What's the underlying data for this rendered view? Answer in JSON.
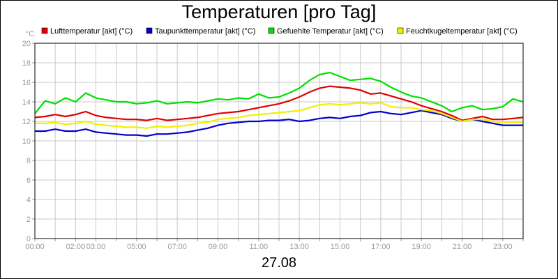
{
  "chart_data": {
    "type": "line",
    "title": "Temperaturen [pro Tag]",
    "ylabel": "°C",
    "xlabel": "27.08",
    "ylim": [
      0,
      20
    ],
    "yticks": [
      0,
      2,
      4,
      6,
      8,
      10,
      12,
      14,
      16,
      18,
      20
    ],
    "xlim": [
      0,
      24
    ],
    "xticks": [
      {
        "t": 0,
        "label": "00:00"
      },
      {
        "t": 2,
        "label": "02:00"
      },
      {
        "t": 3,
        "label": "03:00"
      },
      {
        "t": 5,
        "label": "05:00"
      },
      {
        "t": 7,
        "label": "07:00"
      },
      {
        "t": 9,
        "label": "09:00"
      },
      {
        "t": 11,
        "label": "11:00"
      },
      {
        "t": 13,
        "label": "13:00"
      },
      {
        "t": 15,
        "label": "15:00"
      },
      {
        "t": 17,
        "label": "17:00"
      },
      {
        "t": 19,
        "label": "19:00"
      },
      {
        "t": 21,
        "label": "21:00"
      },
      {
        "t": 23,
        "label": "23:00"
      }
    ],
    "grid": true,
    "legend_position": "top",
    "x": [
      0,
      0.5,
      1,
      1.5,
      2,
      2.5,
      3,
      3.5,
      4,
      4.5,
      5,
      5.5,
      6,
      6.5,
      7,
      7.5,
      8,
      8.5,
      9,
      9.5,
      10,
      10.5,
      11,
      11.5,
      12,
      12.5,
      13,
      13.5,
      14,
      14.5,
      15,
      15.5,
      16,
      16.5,
      17,
      17.5,
      18,
      18.5,
      19,
      19.5,
      20,
      20.5,
      21,
      21.5,
      22,
      22.5,
      23,
      23.5,
      24
    ],
    "series": [
      {
        "name": "Lufttemperatur [akt] (°C)",
        "color": "#e00000",
        "values": [
          12.4,
          12.5,
          12.7,
          12.5,
          12.7,
          13.0,
          12.6,
          12.4,
          12.3,
          12.2,
          12.2,
          12.1,
          12.3,
          12.1,
          12.2,
          12.3,
          12.4,
          12.6,
          12.8,
          12.9,
          13.0,
          13.2,
          13.4,
          13.6,
          13.8,
          14.1,
          14.5,
          15.0,
          15.4,
          15.6,
          15.5,
          15.4,
          15.2,
          14.8,
          14.9,
          14.6,
          14.3,
          14.0,
          13.6,
          13.3,
          13.0,
          12.6,
          12.1,
          12.3,
          12.5,
          12.2,
          12.2,
          12.3,
          12.4
        ]
      },
      {
        "name": "Taupunkttemperatur [akt] (°C)",
        "color": "#0000d0",
        "values": [
          11.0,
          11.0,
          11.2,
          11.0,
          11.0,
          11.2,
          10.9,
          10.8,
          10.7,
          10.6,
          10.6,
          10.5,
          10.7,
          10.7,
          10.8,
          10.9,
          11.1,
          11.3,
          11.6,
          11.8,
          11.9,
          12.0,
          12.0,
          12.1,
          12.1,
          12.2,
          12.0,
          12.1,
          12.3,
          12.4,
          12.3,
          12.5,
          12.6,
          12.9,
          13.0,
          12.8,
          12.7,
          12.9,
          13.1,
          12.9,
          12.7,
          12.3,
          12.0,
          12.2,
          12.0,
          11.8,
          11.6,
          11.6,
          11.6
        ]
      },
      {
        "name": "Gefuehlte Temperatur [akt] (°C)",
        "color": "#00e000",
        "values": [
          12.8,
          14.1,
          13.8,
          14.4,
          14.0,
          14.9,
          14.4,
          14.2,
          14.0,
          14.0,
          13.8,
          13.9,
          14.1,
          13.8,
          13.9,
          14.0,
          13.9,
          14.1,
          14.3,
          14.2,
          14.4,
          14.3,
          14.8,
          14.4,
          14.5,
          14.9,
          15.4,
          16.2,
          16.8,
          17.0,
          16.6,
          16.2,
          16.3,
          16.4,
          16.1,
          15.5,
          15.0,
          14.6,
          14.4,
          14.0,
          13.6,
          13.0,
          13.4,
          13.6,
          13.2,
          13.3,
          13.5,
          14.3,
          14.0
        ]
      },
      {
        "name": "Feuchtkugeltemperatur [akt] (°C)",
        "color": "#f0f000",
        "values": [
          11.8,
          11.8,
          11.9,
          11.7,
          11.8,
          12.0,
          11.7,
          11.6,
          11.5,
          11.4,
          11.4,
          11.3,
          11.5,
          11.4,
          11.5,
          11.6,
          11.8,
          11.9,
          12.2,
          12.3,
          12.4,
          12.6,
          12.7,
          12.8,
          12.9,
          13.0,
          13.1,
          13.4,
          13.7,
          13.8,
          13.7,
          13.8,
          13.9,
          13.8,
          13.9,
          13.5,
          13.4,
          13.4,
          13.2,
          13.1,
          12.8,
          12.4,
          12.0,
          12.2,
          12.2,
          12.0,
          11.9,
          11.9,
          11.9
        ]
      }
    ]
  }
}
